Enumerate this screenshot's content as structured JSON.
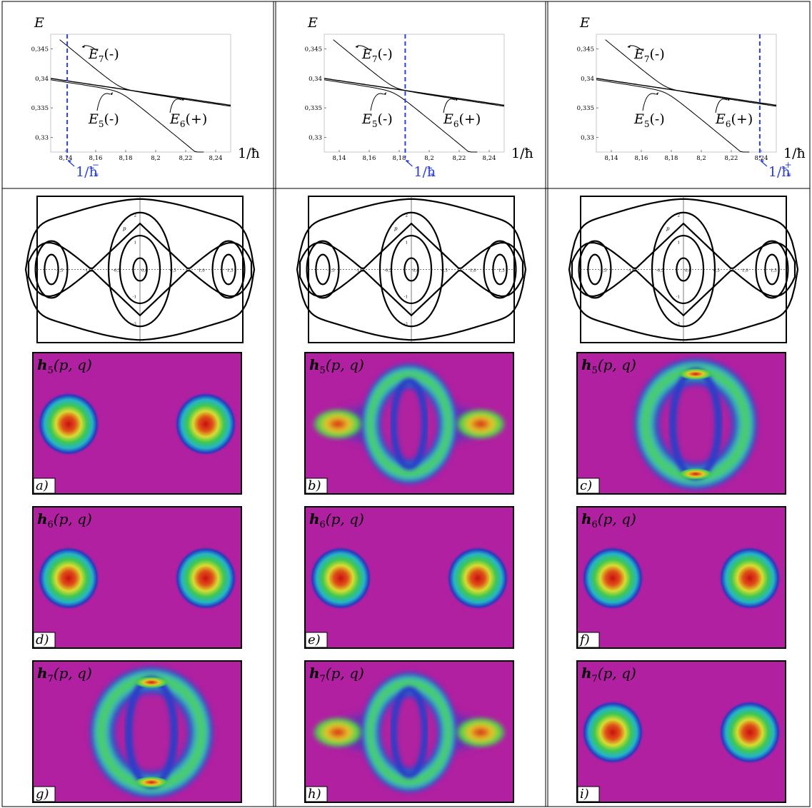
{
  "energy_axis_label": "E",
  "hbar_axis_label": "1/ħ",
  "energy_ticks": [
    "0,345",
    "0,34",
    "0,335",
    "0,33"
  ],
  "hbar_ticks": [
    "8,14",
    "8,16",
    "8,18",
    "8,2",
    "8,22",
    "8,24"
  ],
  "level_labels": {
    "e7": {
      "main": "E",
      "sub": "7",
      "parity": "(-)"
    },
    "e5": {
      "main": "E",
      "sub": "5",
      "parity": "(-)"
    },
    "e6": {
      "main": "E",
      "sub": "6",
      "parity": "(+)"
    }
  },
  "marker_color": "#2a3fe0",
  "energy_panels": [
    {
      "marker_x": 8.141,
      "label": "1/ħ",
      "sub": "*",
      "sup": "−"
    },
    {
      "marker_x": 8.184,
      "label": "1/ħ",
      "sub": "*",
      "sup": ""
    },
    {
      "marker_x": 8.239,
      "label": "1/ħ",
      "sub": "*",
      "sup": "+"
    }
  ],
  "phase_portrait": {
    "p_label": "p",
    "q_ticks": [
      "-1,5",
      "-1,0",
      "-0,5",
      "0,0",
      "0,5",
      "1,0",
      "1,5"
    ],
    "p_ticks": [
      "2",
      "1",
      "-1",
      "-2"
    ]
  },
  "husimi_rows": [
    {
      "func": "h",
      "sub": "5",
      "args": "(p, q)",
      "letters": [
        "a)",
        "b)",
        "c)"
      ],
      "patterns": [
        "outer",
        "mixed",
        "inner"
      ]
    },
    {
      "func": "h",
      "sub": "6",
      "args": "(p, q)",
      "letters": [
        "d)",
        "e)",
        "f)"
      ],
      "patterns": [
        "outer",
        "outer",
        "outer"
      ]
    },
    {
      "func": "h",
      "sub": "7",
      "args": "(p, q)",
      "letters": [
        "g)",
        "h)",
        "i)"
      ],
      "patterns": [
        "inner",
        "mixed",
        "outer"
      ]
    }
  ],
  "colors": {
    "background_magenta": "#b020a0",
    "ring_blue": "#2a3cc8",
    "cyan": "#28c8c0",
    "green": "#46d050",
    "yellow": "#e8e030",
    "red": "#d42020"
  }
}
